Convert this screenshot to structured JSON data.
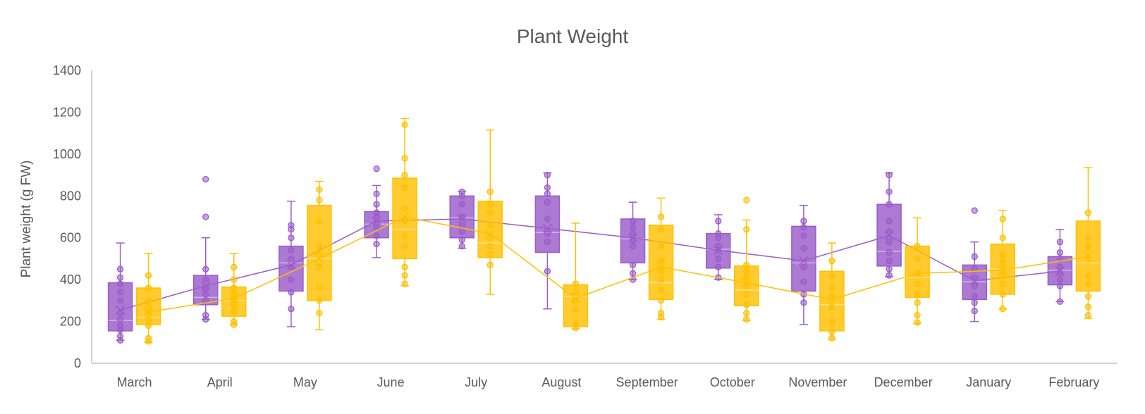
{
  "chart_data": {
    "type": "box",
    "title": "Plant Weight",
    "xlabel": "",
    "ylabel": "Plant  weight (g FW)",
    "ylim": [
      0,
      1400
    ],
    "yticks": [
      0,
      200,
      400,
      600,
      800,
      1000,
      1200,
      1400
    ],
    "grid": false,
    "legend": "none",
    "categories": [
      "March",
      "April",
      "May",
      "June",
      "July",
      "August",
      "September",
      "October",
      "November",
      "December",
      "January",
      "February"
    ],
    "series": [
      {
        "color": "#9a5cc9",
        "boxes": [
          {
            "min": 110,
            "q1": 155,
            "median": 205,
            "q3": 385,
            "max": 575,
            "mean": 255,
            "points": [
              110,
              130,
              160,
              180,
              210,
              240,
              300,
              340,
              380,
              410,
              450
            ]
          },
          {
            "min": 210,
            "q1": 280,
            "median": 315,
            "q3": 420,
            "max": 600,
            "mean": 370,
            "points": [
              210,
              230,
              300,
              330,
              360,
              400,
              450,
              700,
              880
            ]
          },
          {
            "min": 175,
            "q1": 345,
            "median": 480,
            "q3": 560,
            "max": 775,
            "mean": 470,
            "points": [
              260,
              340,
              400,
              460,
              500,
              540,
              600,
              640,
              660
            ]
          },
          {
            "min": 505,
            "q1": 600,
            "median": 665,
            "q3": 725,
            "max": 850,
            "mean": 680,
            "points": [
              570,
              610,
              650,
              670,
              700,
              720,
              760,
              810,
              930
            ]
          },
          {
            "min": 550,
            "q1": 600,
            "median": 695,
            "q3": 800,
            "max": 820,
            "mean": 690,
            "points": [
              560,
              590,
              630,
              660,
              700,
              760,
              800,
              820
            ]
          },
          {
            "min": 260,
            "q1": 530,
            "median": 625,
            "q3": 800,
            "max": 910,
            "mean": 645,
            "points": [
              440,
              580,
              620,
              690,
              770,
              810,
              840,
              900
            ]
          },
          {
            "min": 400,
            "q1": 480,
            "median": 595,
            "q3": 690,
            "max": 770,
            "mean": 600,
            "points": [
              400,
              430,
              470,
              560,
              590,
              620,
              650,
              680
            ]
          },
          {
            "min": 400,
            "q1": 455,
            "median": 545,
            "q3": 620,
            "max": 710,
            "mean": 540,
            "points": [
              410,
              460,
              500,
              540,
              560,
              600,
              620,
              680
            ]
          },
          {
            "min": 185,
            "q1": 345,
            "median": 480,
            "q3": 655,
            "max": 755,
            "mean": 490,
            "points": [
              290,
              330,
              390,
              460,
              550,
              610,
              650,
              680
            ]
          },
          {
            "min": 415,
            "q1": 465,
            "median": 535,
            "q3": 760,
            "max": 910,
            "mean": 610,
            "points": [
              420,
              450,
              490,
              530,
              580,
              630,
              680,
              760,
              820,
              900
            ]
          },
          {
            "min": 200,
            "q1": 305,
            "median": 390,
            "q3": 470,
            "max": 580,
            "mean": 395,
            "points": [
              250,
              290,
              320,
              370,
              410,
              450,
              510,
              730
            ]
          },
          {
            "min": 295,
            "q1": 375,
            "median": 445,
            "q3": 510,
            "max": 640,
            "mean": 440,
            "points": [
              295,
              370,
              400,
              430,
              460,
              500,
              530,
              580
            ]
          }
        ]
      },
      {
        "color": "#ffc000",
        "boxes": [
          {
            "min": 100,
            "q1": 185,
            "median": 220,
            "q3": 360,
            "max": 525,
            "mean": 245,
            "points": [
              105,
              120,
              180,
              210,
              240,
              270,
              300,
              360,
              420
            ]
          },
          {
            "min": 185,
            "q1": 225,
            "median": 300,
            "q3": 365,
            "max": 525,
            "mean": 310,
            "points": [
              185,
              200,
              250,
              280,
              310,
              330,
              360,
              400,
              460
            ]
          },
          {
            "min": 160,
            "q1": 300,
            "median": 500,
            "q3": 755,
            "max": 870,
            "mean": 500,
            "points": [
              240,
              300,
              360,
              460,
              520,
              560,
              680,
              780,
              830
            ]
          },
          {
            "min": 370,
            "q1": 500,
            "median": 640,
            "q3": 885,
            "max": 1170,
            "mean": 700,
            "points": [
              380,
              420,
              460,
              560,
              610,
              680,
              740,
              840,
              900,
              980,
              1140
            ]
          },
          {
            "min": 330,
            "q1": 505,
            "median": 575,
            "q3": 775,
            "max": 1115,
            "mean": 620,
            "points": [
              470,
              520,
              560,
              600,
              660,
              720,
              760,
              820
            ]
          },
          {
            "min": 165,
            "q1": 175,
            "median": 320,
            "q3": 375,
            "max": 670,
            "mean": 310,
            "points": [
              170,
              190,
              260,
              300,
              340,
              380
            ]
          },
          {
            "min": 210,
            "q1": 305,
            "median": 385,
            "q3": 660,
            "max": 790,
            "mean": 460,
            "points": [
              220,
              240,
              300,
              350,
              400,
              440,
              490,
              560,
              640,
              700
            ]
          },
          {
            "min": 205,
            "q1": 275,
            "median": 350,
            "q3": 465,
            "max": 685,
            "mean": 385,
            "points": [
              210,
              240,
              280,
              330,
              370,
              410,
              440,
              470,
              640,
              780
            ]
          },
          {
            "min": 115,
            "q1": 155,
            "median": 280,
            "q3": 440,
            "max": 575,
            "mean": 305,
            "points": [
              120,
              150,
              200,
              270,
              320,
              360,
              420,
              490
            ]
          },
          {
            "min": 190,
            "q1": 315,
            "median": 410,
            "q3": 560,
            "max": 695,
            "mean": 430,
            "points": [
              195,
              230,
              290,
              330,
              380,
              430,
              500,
              560
            ]
          },
          {
            "min": 260,
            "q1": 330,
            "median": 450,
            "q3": 570,
            "max": 730,
            "mean": 445,
            "points": [
              260,
              330,
              380,
              420,
              460,
              490,
              520,
              600,
              690
            ]
          },
          {
            "min": 215,
            "q1": 345,
            "median": 480,
            "q3": 680,
            "max": 935,
            "mean": 510,
            "points": [
              230,
              270,
              320,
              380,
              420,
              500,
              560,
              600,
              720
            ]
          }
        ]
      }
    ]
  }
}
